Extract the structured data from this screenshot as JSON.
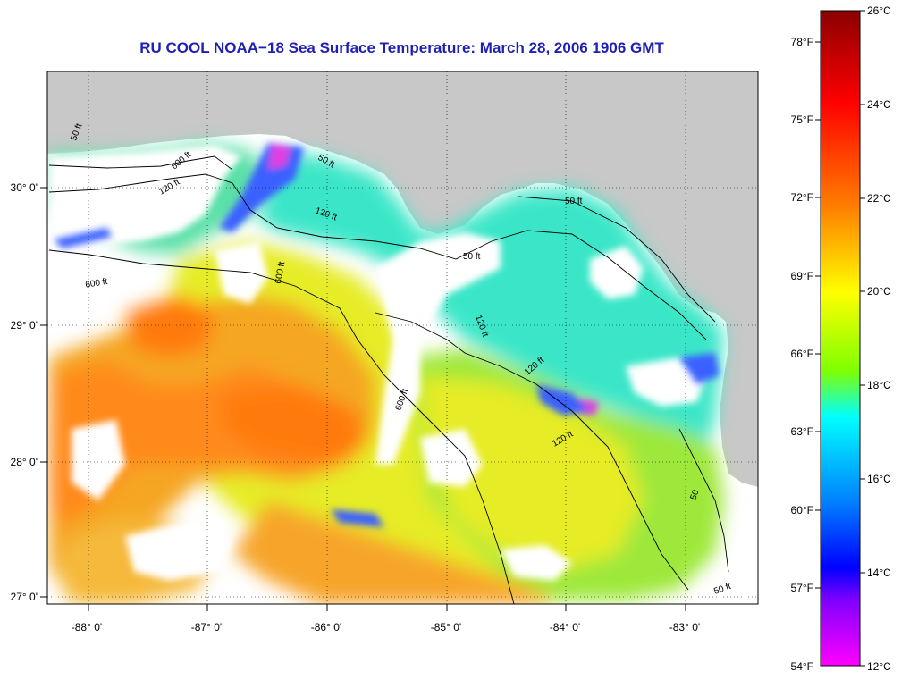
{
  "title": "RU COOL  NOAA−18  Sea Surface Temperature:  March 28, 2006 1906 GMT",
  "map": {
    "lon_ticks": [
      "-88° 0'",
      "-87° 0'",
      "-86° 0'",
      "-85° 0'",
      "-84° 0'",
      "-83° 0'"
    ],
    "lat_ticks": [
      "30° 0'",
      "29° 0'",
      "28° 0'",
      "27° 0'"
    ],
    "contour_labels": [
      "50 ft",
      "120 ft",
      "600 ft",
      "600 ft",
      "50 ft",
      "120 ft",
      "600 ft",
      "120 ft",
      "50 ft",
      "120 ft",
      "600 ft",
      "50 ft",
      "120 ft",
      "50",
      "50 ft"
    ],
    "colors": {
      "land": "#c8c8c8",
      "cloud": "#ffffff",
      "contour": "#000000",
      "grid": "#000000"
    }
  },
  "colorbar": {
    "fahrenheit_labels": [
      "78°F",
      "75°F",
      "72°F",
      "69°F",
      "66°F",
      "63°F",
      "60°F",
      "57°F",
      "54°F"
    ],
    "celsius_labels": [
      "26°C",
      "24°C",
      "22°C",
      "20°C",
      "18°C",
      "16°C",
      "14°C",
      "12°C"
    ],
    "celsius_range": [
      12,
      26
    ],
    "gradient_stops": [
      "#8b0000",
      "#ff0000",
      "#ff7f00",
      "#ffff00",
      "#7fff00",
      "#00ffff",
      "#0080ff",
      "#0000ff",
      "#8000ff",
      "#ff00ff"
    ]
  }
}
